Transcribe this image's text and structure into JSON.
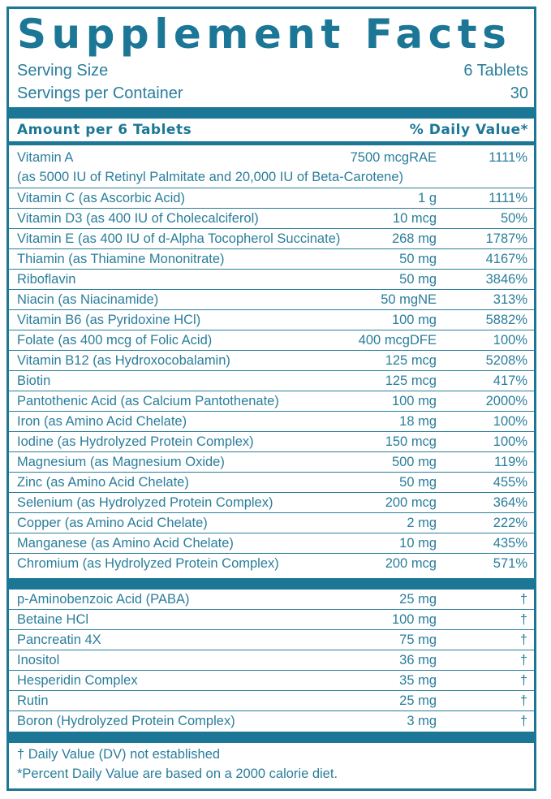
{
  "title": "Supplement Facts",
  "serving": {
    "size_label": "Serving Size",
    "size_value": "6 Tablets",
    "per_container_label": "Servings per Container",
    "per_container_value": "30"
  },
  "header": {
    "amount": "Amount per 6 Tablets",
    "daily_value": "% Daily Value*"
  },
  "vitamins": [
    {
      "name": "Vitamin A",
      "sub": "(as 5000 IU of Retinyl Palmitate and 20,000 IU of Beta-Carotene)",
      "amount": "7500 mcgRAE",
      "dv": "1111%"
    },
    {
      "name": "Vitamin C (as Ascorbic Acid)",
      "amount": "1 g",
      "dv": "1111%"
    },
    {
      "name": "Vitamin D3 (as 400 IU of Cholecalciferol)",
      "amount": "10 mcg",
      "dv": "50%"
    },
    {
      "name": "Vitamin E (as 400 IU of d-Alpha Tocopherol Succinate)",
      "amount": "268 mg",
      "dv": "1787%"
    },
    {
      "name": "Thiamin (as Thiamine Mononitrate)",
      "amount": "50 mg",
      "dv": "4167%"
    },
    {
      "name": "Riboflavin",
      "amount": "50 mg",
      "dv": "3846%"
    },
    {
      "name": "Niacin (as Niacinamide)",
      "amount": "50 mgNE",
      "dv": "313%"
    },
    {
      "name": "Vitamin B6 (as Pyridoxine HCl)",
      "amount": "100 mg",
      "dv": "5882%"
    },
    {
      "name": "Folate (as 400 mcg of Folic Acid)",
      "amount": "400 mcgDFE",
      "dv": "100%"
    },
    {
      "name": "Vitamin B12 (as Hydroxocobalamin)",
      "amount": "125 mcg",
      "dv": "5208%"
    },
    {
      "name": "Biotin",
      "amount": "125 mcg",
      "dv": "417%"
    },
    {
      "name": "Pantothenic Acid (as Calcium Pantothenate)",
      "amount": "100 mg",
      "dv": "2000%"
    },
    {
      "name": "Iron (as Amino Acid Chelate)",
      "amount": "18 mg",
      "dv": "100%"
    },
    {
      "name": "Iodine (as Hydrolyzed Protein Complex)",
      "amount": "150 mcg",
      "dv": "100%"
    },
    {
      "name": "Magnesium (as Magnesium Oxide)",
      "amount": "500 mg",
      "dv": "119%"
    },
    {
      "name": "Zinc (as Amino Acid Chelate)",
      "amount": "50 mg",
      "dv": "455%"
    },
    {
      "name": "Selenium (as Hydrolyzed Protein Complex)",
      "amount": "200 mcg",
      "dv": "364%"
    },
    {
      "name": "Copper (as Amino Acid Chelate)",
      "amount": "2 mg",
      "dv": "222%"
    },
    {
      "name": "Manganese (as Amino Acid Chelate)",
      "amount": "10 mg",
      "dv": "435%"
    },
    {
      "name": "Chromium (as Hydrolyzed Protein Complex)",
      "amount": "200 mcg",
      "dv": "571%"
    }
  ],
  "others": [
    {
      "name": "p-Aminobenzoic Acid (PABA)",
      "amount": "25 mg",
      "dv": "†"
    },
    {
      "name": "Betaine HCl",
      "amount": "100 mg",
      "dv": "†"
    },
    {
      "name": "Pancreatin 4X",
      "amount": "75 mg",
      "dv": "†"
    },
    {
      "name": "Inositol",
      "amount": "36 mg",
      "dv": "†"
    },
    {
      "name": "Hesperidin Complex",
      "amount": "35 mg",
      "dv": "†"
    },
    {
      "name": "Rutin",
      "amount": "25 mg",
      "dv": "†"
    },
    {
      "name": "Boron (Hydrolyzed Protein Complex)",
      "amount": "3 mg",
      "dv": "†"
    }
  ],
  "footnotes": {
    "dagger": "† Daily Value (DV) not established",
    "percent": "*Percent Daily Value are based on a 2000 calorie diet."
  },
  "colors": {
    "accent": "#1c7796",
    "text": "#2a7e9b"
  }
}
